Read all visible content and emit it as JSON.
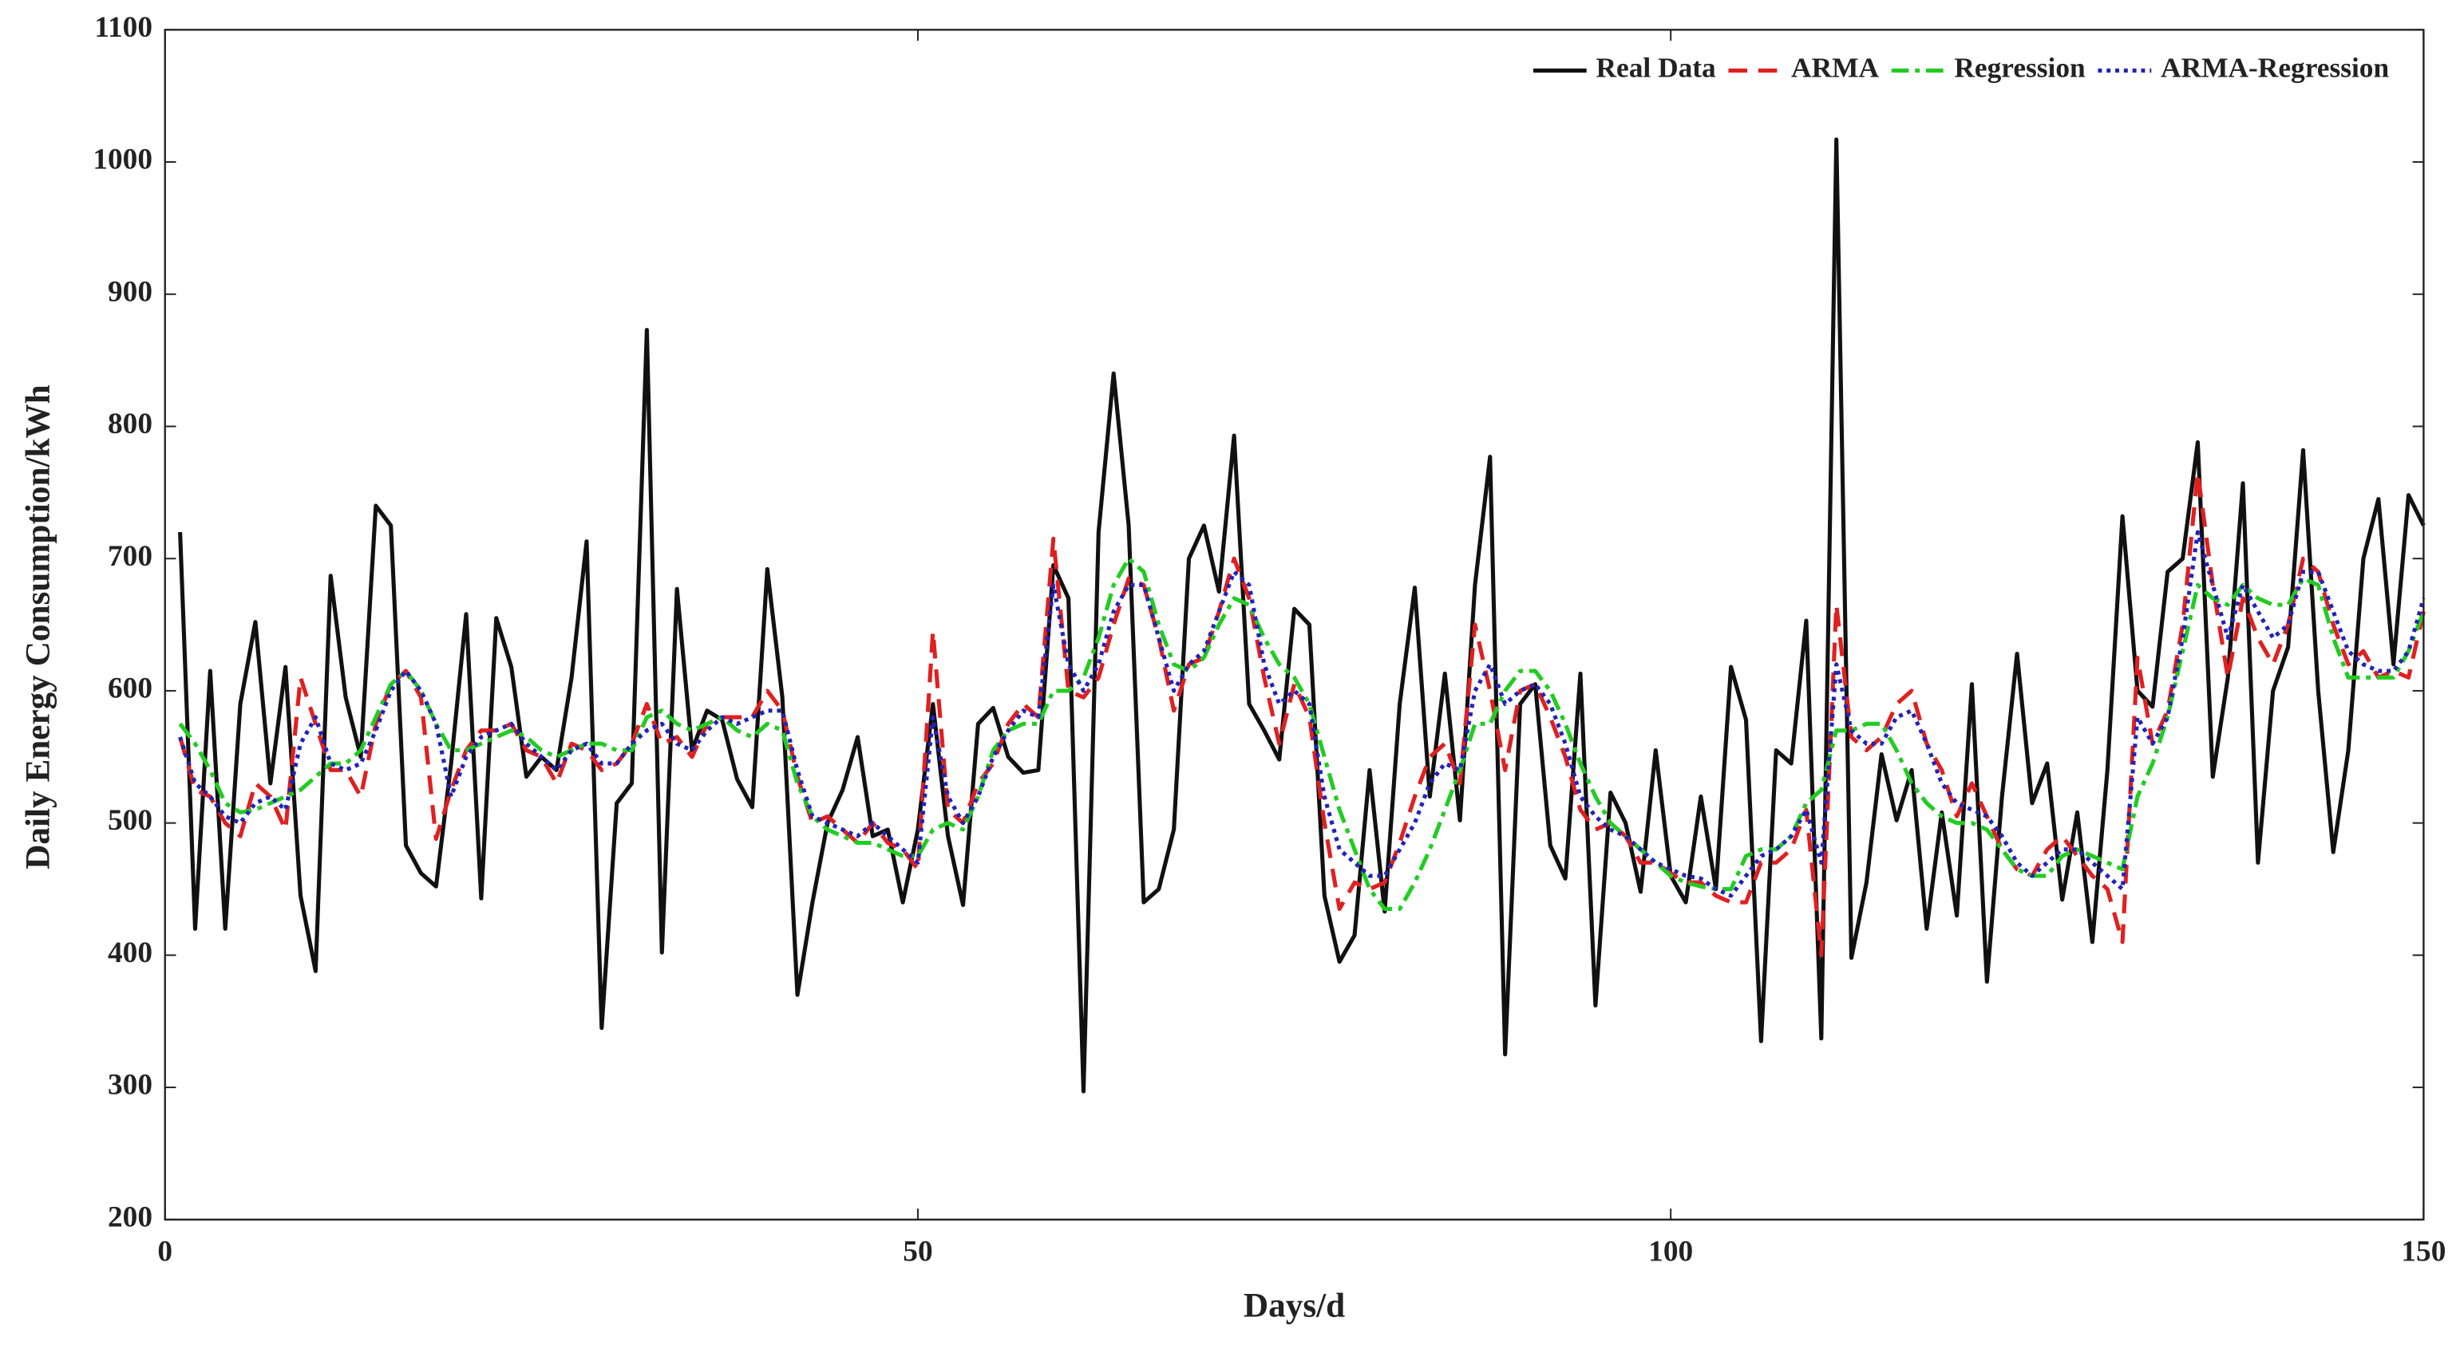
{
  "chart_data": {
    "type": "line",
    "xlabel": "Days/d",
    "ylabel": "Daily Energy Consumption/kWh",
    "xlim": [
      0,
      150
    ],
    "ylim": [
      200,
      1100
    ],
    "xticks": [
      0,
      50,
      100,
      150
    ],
    "yticks": [
      200,
      300,
      400,
      500,
      600,
      700,
      800,
      900,
      1000,
      1100
    ],
    "legend": "upper right",
    "x": [
      1,
      2,
      3,
      4,
      5,
      6,
      7,
      8,
      9,
      10,
      11,
      12,
      13,
      14,
      15,
      16,
      17,
      18,
      19,
      20,
      21,
      22,
      23,
      24,
      25,
      26,
      27,
      28,
      29,
      30,
      31,
      32,
      33,
      34,
      35,
      36,
      37,
      38,
      39,
      40,
      41,
      42,
      43,
      44,
      45,
      46,
      47,
      48,
      49,
      50,
      51,
      52,
      53,
      54,
      55,
      56,
      57,
      58,
      59,
      60,
      61,
      62,
      63,
      64,
      65,
      66,
      67,
      68,
      69,
      70,
      71,
      72,
      73,
      74,
      75,
      76,
      77,
      78,
      79,
      80,
      81,
      82,
      83,
      84,
      85,
      86,
      87,
      88,
      89,
      90,
      91,
      92,
      93,
      94,
      95,
      96,
      97,
      98,
      99,
      100,
      101,
      102,
      103,
      104,
      105,
      106,
      107,
      108,
      109,
      110,
      111,
      112,
      113,
      114,
      115,
      116,
      117,
      118,
      119,
      120,
      121,
      122,
      123,
      124,
      125,
      126,
      127,
      128,
      129,
      130,
      131,
      132,
      133,
      134,
      135,
      136,
      137,
      138,
      139,
      140,
      141,
      142,
      143,
      144,
      145,
      146,
      147,
      148,
      149,
      150
    ],
    "series": [
      {
        "name": "Real Data",
        "color": "#111111",
        "dash": "solid",
        "values": [
          720,
          420,
          615,
          420,
          590,
          652,
          530,
          618,
          445,
          388,
          687,
          595,
          550,
          740,
          725,
          483,
          462,
          452,
          545,
          658,
          443,
          655,
          618,
          535,
          550,
          540,
          610,
          713,
          345,
          515,
          530,
          873,
          402,
          677,
          555,
          585,
          578,
          533,
          512,
          692,
          595,
          370,
          440,
          500,
          525,
          565,
          490,
          495,
          440,
          495,
          590,
          490,
          438,
          575,
          587,
          550,
          538,
          540,
          695,
          670,
          297,
          720,
          840,
          725,
          440,
          450,
          495,
          700,
          725,
          675,
          793,
          590,
          570,
          548,
          662,
          650,
          445,
          395,
          415,
          540,
          433,
          590,
          678,
          520,
          613,
          502,
          680,
          777,
          325,
          590,
          605,
          483,
          458,
          613,
          362,
          523,
          500,
          448,
          555,
          460,
          440,
          520,
          450,
          618,
          578,
          335,
          555,
          545,
          653,
          337,
          1017,
          398,
          455,
          552,
          502,
          540,
          420,
          508,
          430,
          605,
          380,
          520,
          628,
          515,
          545,
          442,
          508,
          410,
          540,
          732,
          600,
          588,
          690,
          700,
          788,
          535,
          610,
          757,
          470,
          600,
          633,
          782,
          600,
          478,
          555,
          700,
          745,
          620,
          748,
          725
        ]
      },
      {
        "name": "ARMA",
        "color": "#e02020",
        "dash": "dashed",
        "values": [
          565,
          525,
          520,
          500,
          490,
          530,
          520,
          495,
          610,
          575,
          540,
          540,
          520,
          575,
          605,
          615,
          595,
          488,
          525,
          555,
          570,
          570,
          575,
          555,
          550,
          530,
          560,
          555,
          540,
          545,
          560,
          590,
          560,
          565,
          550,
          575,
          580,
          580,
          580,
          600,
          585,
          535,
          500,
          505,
          495,
          485,
          500,
          485,
          480,
          465,
          645,
          510,
          500,
          530,
          545,
          575,
          590,
          580,
          715,
          600,
          595,
          610,
          650,
          685,
          680,
          640,
          585,
          620,
          625,
          660,
          700,
          670,
          610,
          560,
          605,
          580,
          500,
          435,
          455,
          450,
          455,
          485,
          520,
          550,
          560,
          530,
          650,
          600,
          540,
          600,
          605,
          580,
          550,
          510,
          495,
          500,
          490,
          470,
          470,
          462,
          455,
          455,
          445,
          440,
          440,
          470,
          470,
          480,
          510,
          400,
          665,
          565,
          555,
          565,
          590,
          600,
          560,
          540,
          505,
          530,
          505,
          480,
          465,
          460,
          480,
          490,
          475,
          460,
          450,
          410,
          625,
          560,
          585,
          650,
          765,
          680,
          610,
          670,
          640,
          620,
          650,
          700,
          690,
          650,
          620,
          630,
          610,
          615,
          610,
          660
        ]
      },
      {
        "name": "Regression",
        "color": "#22cc22",
        "dash": "dashdot",
        "values": [
          575,
          560,
          540,
          515,
          508,
          510,
          515,
          520,
          525,
          535,
          545,
          545,
          555,
          580,
          605,
          615,
          600,
          575,
          555,
          555,
          560,
          565,
          570,
          565,
          555,
          550,
          555,
          560,
          560,
          555,
          555,
          580,
          585,
          575,
          570,
          575,
          580,
          570,
          565,
          575,
          570,
          530,
          505,
          495,
          490,
          485,
          485,
          480,
          475,
          475,
          495,
          500,
          495,
          520,
          555,
          570,
          575,
          575,
          600,
          600,
          610,
          640,
          680,
          700,
          690,
          650,
          620,
          615,
          625,
          650,
          670,
          665,
          640,
          620,
          610,
          590,
          550,
          510,
          480,
          450,
          435,
          435,
          455,
          480,
          510,
          540,
          575,
          575,
          600,
          615,
          615,
          600,
          575,
          545,
          520,
          500,
          490,
          480,
          470,
          460,
          455,
          452,
          450,
          450,
          475,
          480,
          480,
          490,
          515,
          525,
          570,
          570,
          575,
          575,
          555,
          530,
          515,
          505,
          500,
          500,
          495,
          480,
          465,
          460,
          460,
          475,
          480,
          475,
          470,
          465,
          520,
          545,
          580,
          630,
          680,
          670,
          665,
          680,
          670,
          665,
          665,
          685,
          680,
          640,
          610,
          610,
          610,
          610,
          630,
          660
        ]
      },
      {
        "name": "ARMA-Regression",
        "color": "#2222bb",
        "dash": "dotted",
        "values": [
          565,
          530,
          520,
          505,
          500,
          515,
          520,
          510,
          560,
          580,
          545,
          540,
          545,
          570,
          600,
          615,
          600,
          575,
          520,
          550,
          565,
          570,
          575,
          560,
          550,
          540,
          555,
          560,
          545,
          545,
          560,
          570,
          575,
          560,
          555,
          570,
          580,
          575,
          580,
          585,
          585,
          540,
          505,
          500,
          495,
          490,
          500,
          490,
          480,
          470,
          580,
          520,
          500,
          520,
          550,
          570,
          585,
          580,
          680,
          620,
          600,
          620,
          660,
          680,
          680,
          640,
          600,
          620,
          630,
          660,
          690,
          680,
          620,
          590,
          600,
          590,
          520,
          480,
          470,
          460,
          460,
          480,
          500,
          530,
          545,
          540,
          600,
          620,
          590,
          600,
          605,
          590,
          560,
          520,
          505,
          495,
          490,
          480,
          470,
          465,
          460,
          458,
          450,
          445,
          460,
          475,
          480,
          490,
          510,
          470,
          620,
          570,
          560,
          560,
          580,
          585,
          560,
          530,
          515,
          510,
          505,
          490,
          470,
          460,
          470,
          480,
          480,
          470,
          460,
          450,
          580,
          560,
          580,
          640,
          720,
          680,
          640,
          680,
          660,
          640,
          650,
          690,
          690,
          660,
          630,
          620,
          615,
          615,
          630,
          670
        ]
      }
    ]
  }
}
